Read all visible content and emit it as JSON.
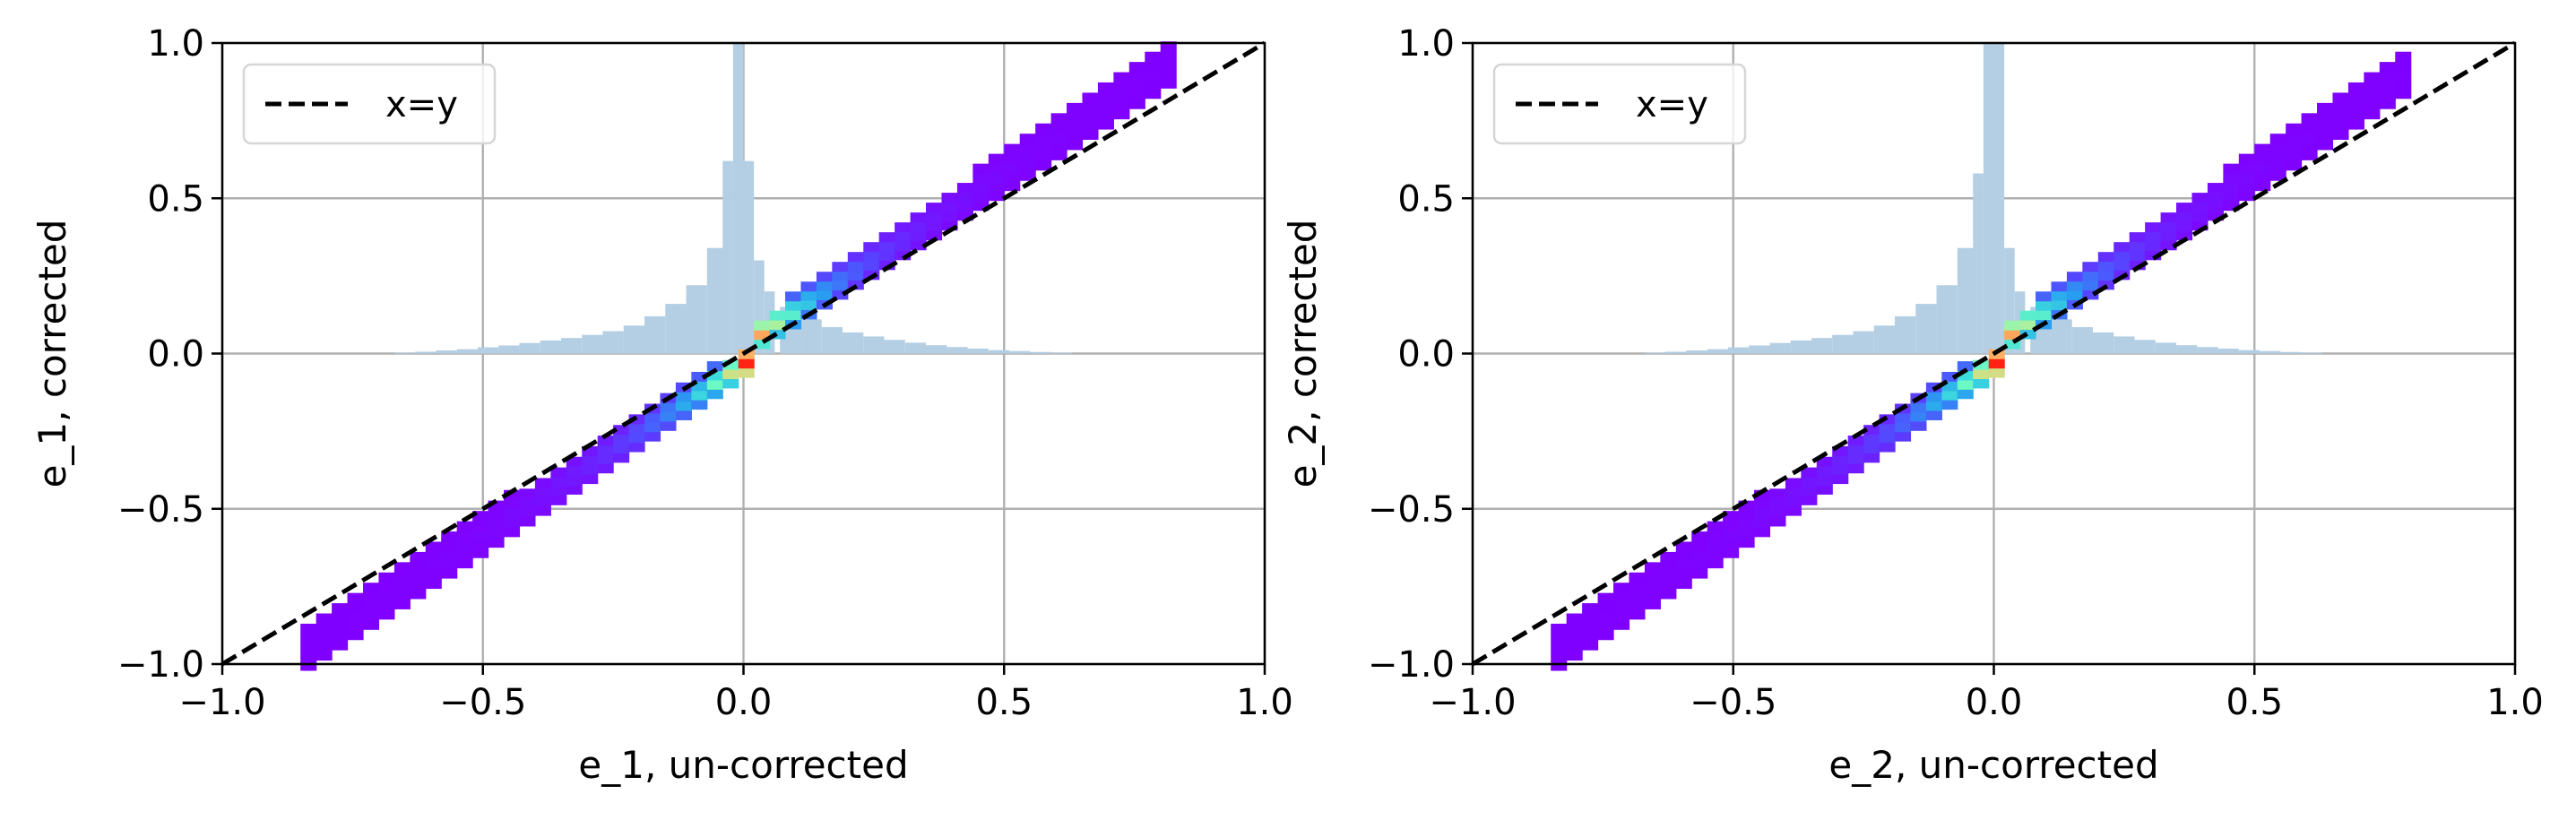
{
  "chart_data": [
    {
      "type": "heatmap",
      "title": "",
      "xlabel": "e_1, un-corrected",
      "ylabel": "e_1, corrected",
      "xlim": [
        -1.0,
        1.0
      ],
      "ylim": [
        -1.0,
        1.0
      ],
      "xticks": [
        "−1.0",
        "−0.5",
        "0.0",
        "0.5",
        "1.0"
      ],
      "yticks": [
        "−1.0",
        "−0.5",
        "0.0",
        "0.5",
        "1.0"
      ],
      "grid": true,
      "legend": {
        "position": "top-left",
        "entries": [
          {
            "label": "x=y",
            "style": "dashed",
            "color": "#000000"
          }
        ]
      },
      "reference_line": {
        "label": "x=y",
        "from": [
          -1.0,
          -1.0
        ],
        "to": [
          1.0,
          1.0
        ]
      },
      "density": {
        "colormap": "rainbow",
        "x_range": [
          -0.85,
          0.8
        ],
        "relation": "corrected = 1.1 × un-corrected, with a sharp jump near 0",
        "peak_at": [
          0.0,
          0.0
        ]
      },
      "histogram": {
        "color": "#b4cfe4",
        "bin_centers": [
          -0.69,
          -0.65,
          -0.61,
          -0.57,
          -0.53,
          -0.49,
          -0.45,
          -0.41,
          -0.37,
          -0.33,
          -0.29,
          -0.25,
          -0.21,
          -0.17,
          -0.13,
          -0.09,
          -0.05,
          -0.03,
          -0.01,
          0.01,
          0.03,
          0.05,
          0.09,
          0.13,
          0.17,
          0.21,
          0.25,
          0.29,
          0.33,
          0.37,
          0.41,
          0.45,
          0.49,
          0.53,
          0.57,
          0.61,
          0.65
        ],
        "heights": [
          0.0,
          0.003,
          0.006,
          0.01,
          0.014,
          0.02,
          0.026,
          0.034,
          0.042,
          0.05,
          0.06,
          0.072,
          0.09,
          0.12,
          0.16,
          0.22,
          0.34,
          0.62,
          1.0,
          0.62,
          0.3,
          0.2,
          0.15,
          0.11,
          0.085,
          0.068,
          0.055,
          0.044,
          0.035,
          0.027,
          0.021,
          0.016,
          0.011,
          0.008,
          0.005,
          0.003,
          0.0
        ]
      }
    },
    {
      "type": "heatmap",
      "title": "",
      "xlabel": "e_2, un-corrected",
      "ylabel": "e_2, corrected",
      "xlim": [
        -1.0,
        1.0
      ],
      "ylim": [
        -1.0,
        1.0
      ],
      "xticks": [
        "−1.0",
        "−0.5",
        "0.0",
        "0.5",
        "1.0"
      ],
      "yticks": [
        "−1.0",
        "−0.5",
        "0.0",
        "0.5",
        "1.0"
      ],
      "grid": true,
      "legend": {
        "position": "top-left",
        "entries": [
          {
            "label": "x=y",
            "style": "dashed",
            "color": "#000000"
          }
        ]
      },
      "reference_line": {
        "label": "x=y",
        "from": [
          -1.0,
          -1.0
        ],
        "to": [
          1.0,
          1.0
        ]
      },
      "density": {
        "colormap": "rainbow",
        "x_range": [
          -0.85,
          0.78
        ],
        "relation": "corrected = 1.1 × un-corrected, with a sharp jump near 0",
        "peak_at": [
          0.0,
          0.0
        ]
      },
      "histogram": {
        "color": "#b4cfe4",
        "bin_centers": [
          -0.69,
          -0.65,
          -0.61,
          -0.57,
          -0.53,
          -0.49,
          -0.45,
          -0.41,
          -0.37,
          -0.33,
          -0.29,
          -0.25,
          -0.21,
          -0.17,
          -0.13,
          -0.09,
          -0.05,
          -0.03,
          -0.01,
          0.01,
          0.03,
          0.05,
          0.09,
          0.13,
          0.17,
          0.21,
          0.25,
          0.29,
          0.33,
          0.37,
          0.41,
          0.45,
          0.49,
          0.53,
          0.57,
          0.61,
          0.65
        ],
        "heights": [
          0.0,
          0.003,
          0.006,
          0.01,
          0.014,
          0.02,
          0.026,
          0.034,
          0.042,
          0.05,
          0.06,
          0.072,
          0.09,
          0.12,
          0.16,
          0.22,
          0.34,
          0.58,
          1.0,
          1.0,
          0.34,
          0.2,
          0.15,
          0.11,
          0.085,
          0.068,
          0.055,
          0.044,
          0.035,
          0.027,
          0.021,
          0.016,
          0.011,
          0.008,
          0.005,
          0.003,
          0.0
        ]
      }
    }
  ]
}
